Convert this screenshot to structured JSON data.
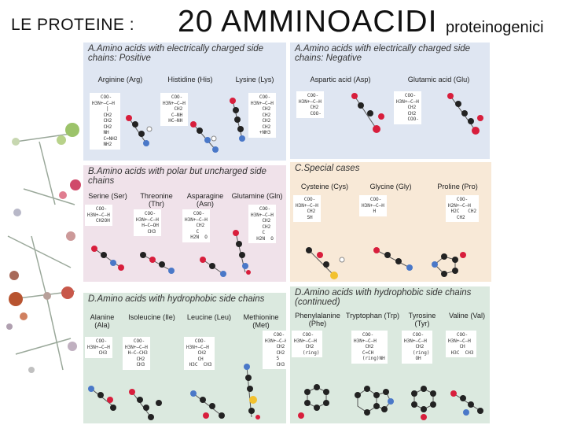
{
  "title": {
    "prefix": "LE PROTEINE :",
    "main": "20 AMMINOACIDI",
    "suffix": "proteinogenici"
  },
  "panels": [
    {
      "id": "A-positive",
      "heading": "A.Amino acids with electrically charged side chains: Positive",
      "acids": [
        {
          "name": "Arginine (Arg)",
          "struct": "   COO-\nH3N+—C—H\n     |\n    CH2\n    CH2\n    CH2\n    NH\n    C=NH2\n    NH2"
        },
        {
          "name": "Histidine (His)",
          "struct": "   COO-\nH3N+—C—H\n    CH2\n   C—NH\n  HC—NH"
        },
        {
          "name": "Lysine (Lys)",
          "struct": "   COO-\nH3N+—C—H\n    CH2\n    CH2\n    CH2\n    CH2\n   +NH3"
        }
      ]
    },
    {
      "id": "A-negative",
      "heading": "A.Amino acids with electrically charged side chains: Negative",
      "acids": [
        {
          "name": "Aspartic acid (Asp)",
          "struct": "   COO-\nH3N+—C—H\n    CH2\n    COO-"
        },
        {
          "name": "Glutamic acid (Glu)",
          "struct": "   COO-\nH3N+—C—H\n    CH2\n    CH2\n    COO-"
        }
      ]
    },
    {
      "id": "B-polar",
      "heading": "B.Amino acids with polar but uncharged side chains",
      "acids": [
        {
          "name": "Serine (Ser)",
          "struct": "   COO-\nH3N+—C—H\n   CH2OH"
        },
        {
          "name": "Threonine (Thr)",
          "struct": "   COO-\nH3N+—C—H\n  H—C—OH\n    CH3"
        },
        {
          "name": "Asparagine (Asn)",
          "struct": "   COO-\nH3N+—C—H\n    CH2\n    C\n  H2N  O"
        },
        {
          "name": "Glutamine (Gln)",
          "struct": "   COO-\nH3N+—C—H\n    CH2\n    CH2\n    C\n  H2N  O"
        }
      ]
    },
    {
      "id": "C-special",
      "heading": "C.Special cases",
      "acids": [
        {
          "name": "Cysteine (Cys)",
          "struct": "   COO-\nH3N+—C—H\n    CH2\n    SH"
        },
        {
          "name": "Glycine (Gly)",
          "struct": "   COO-\nH3N+—C—H\n    H"
        },
        {
          "name": "Proline (Pro)",
          "struct": "   COO-\nH2N+—C—H\n H2C   CH2\n   CH2"
        }
      ]
    },
    {
      "id": "D-hydrophobic",
      "heading": "D.Amino acids with hydrophobic side chains",
      "acids": [
        {
          "name": "Alanine (Ala)",
          "struct": "   COO-\nH3N+—C—H\n    CH3"
        },
        {
          "name": "Isoleucine (Ile)",
          "struct": "   COO-\nH3N+—C—H\n H—C—CH3\n    CH2\n    CH3"
        },
        {
          "name": "Leucine (Leu)",
          "struct": "   COO-\nH3N+—C—H\n    CH2\n    CH\n H3C  CH3"
        },
        {
          "name": "Methionine (Met)",
          "struct": "   COO-\nH3N+—C—H\n    CH2\n    CH2\n    S\n    CH3"
        }
      ]
    },
    {
      "id": "D-continued",
      "heading": "D.Amino acids with hydrophobic side chains (continued)",
      "acids": [
        {
          "name": "Phenylalanine (Phe)",
          "struct": "   COO-\nH3N+—C—H\n    CH2\n   (ring)"
        },
        {
          "name": "Tryptophan (Trp)",
          "struct": "   COO-\nH3N+—C—H\n    CH2\n   C=CH\n   (ring)NH"
        },
        {
          "name": "Tyrosine (Tyr)",
          "struct": "   COO-\nH3N+—C—H\n    CH2\n   (ring)\n    OH"
        },
        {
          "name": "Valine (Val)",
          "struct": "   COO-\nH3N+—C—H\n    CH\n H3C  CH3"
        }
      ]
    }
  ],
  "colors": {
    "carbon": "#222222",
    "oxygen": "#d81e3c",
    "nitrogen": "#4a78c8",
    "hydrogen": "#ffffff",
    "sulfur": "#f2c12e"
  }
}
